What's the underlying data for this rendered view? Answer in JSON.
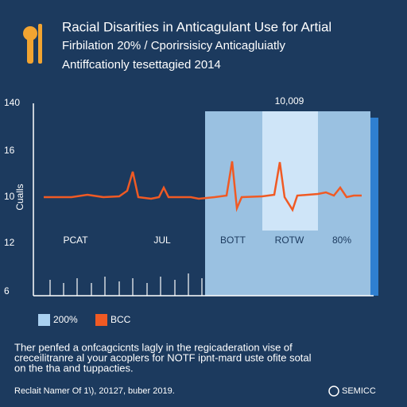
{
  "header": {
    "title_lines": [
      "Racial Disarities in Anticagulant Use for Artial",
      "Firbilation 20% / Cporirsisicy Anticagluiatly",
      "Antiffcationly tesettagied 2014"
    ]
  },
  "chart": {
    "y_axis_label": "Cualls",
    "y_labels": [
      "140",
      "16",
      "10",
      "12",
      "6"
    ],
    "panel_label": "10,009",
    "x_labels": [
      "PCAT",
      "JUL",
      "BOTT",
      "ROTW",
      "80%"
    ]
  },
  "legend": [
    "200%",
    "BCC"
  ],
  "paragraph": [
    "Ther penfed a onfcagcicnts lagly in the regicaderation vise of",
    "creceilitranre al your acoplers for NOTF ipnt-mard uste ofite sotal",
    "on the tha and tuppacties."
  ],
  "footer": {
    "source": "Reclait Namer Of 1\\), 20127, buber 2019.",
    "brand": "SEMICC"
  }
}
